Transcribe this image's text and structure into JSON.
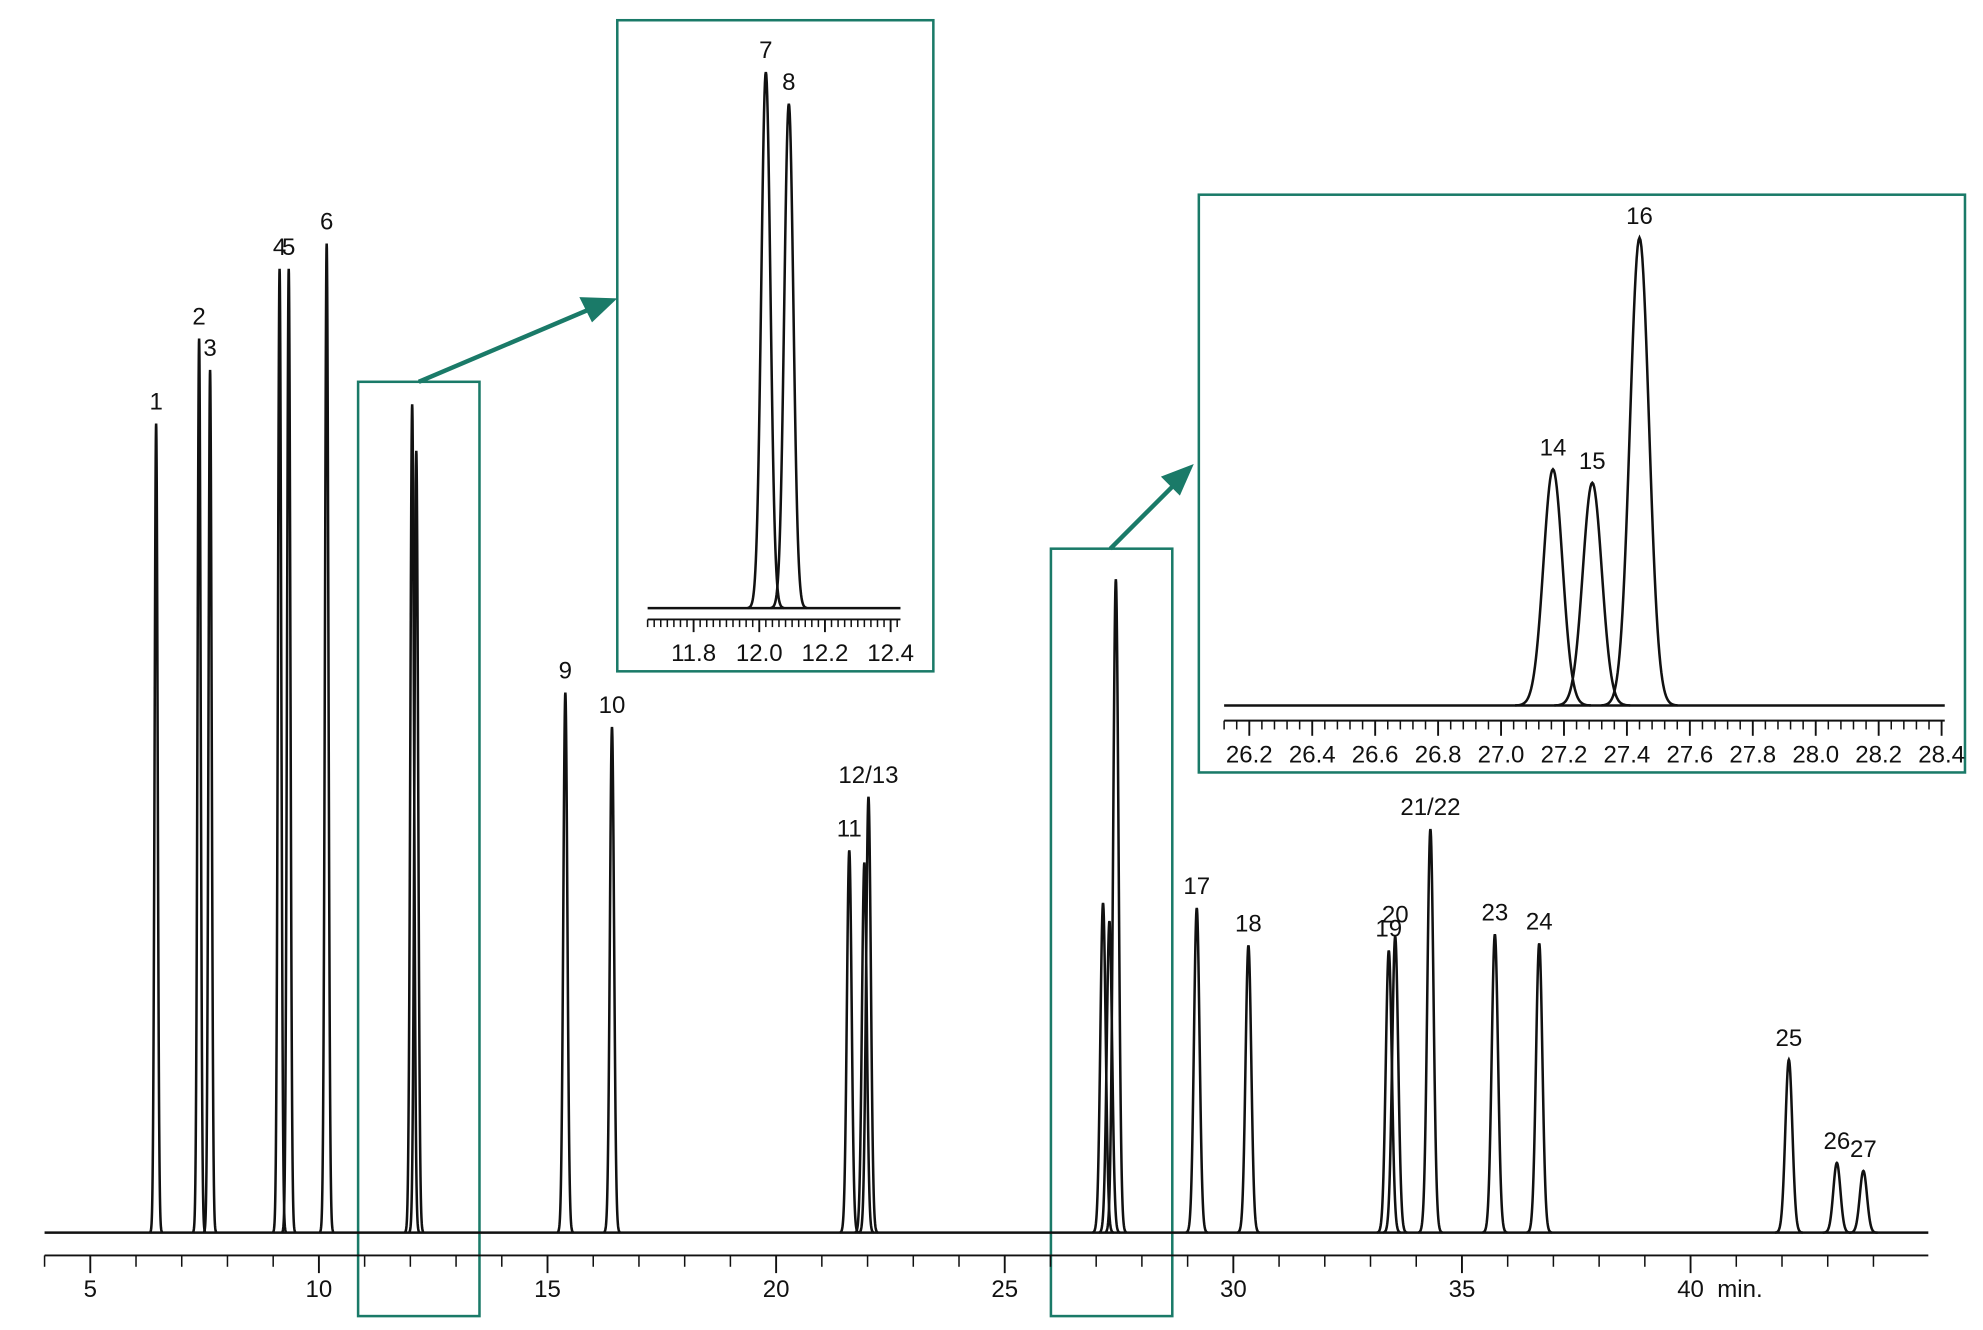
{
  "chart_data": [
    {
      "type": "chromatogram",
      "xlim": [
        4,
        45.2
      ],
      "ylim": [
        0,
        100
      ],
      "xticks": [
        5,
        10,
        15,
        20,
        25,
        30,
        35,
        40
      ],
      "x_unit_label": "min.",
      "peaks": {
        "labels": [
          "1",
          "2",
          "3",
          "4",
          "5",
          "6",
          null,
          null,
          "9",
          "10",
          "11",
          null,
          "12/13",
          null,
          null,
          null,
          "17",
          "18",
          "19",
          "20",
          "21/22",
          "23",
          "24",
          "25",
          "26",
          "27"
        ],
        "x": [
          6.44,
          7.38,
          7.62,
          9.14,
          9.34,
          10.17,
          12.04,
          12.13,
          15.39,
          16.41,
          21.6,
          21.93,
          22.02,
          27.15,
          27.29,
          27.43,
          29.2,
          30.33,
          33.4,
          33.54,
          34.31,
          35.72,
          36.69,
          42.15,
          43.2,
          43.78
        ],
        "values": [
          80,
          88.4,
          85.3,
          95.3,
          95.3,
          97.8,
          81.9,
          77.3,
          53.4,
          50,
          37.8,
          36.6,
          43.1,
          32.6,
          30.8,
          64.6,
          32.1,
          28.4,
          27.9,
          29.3,
          39.9,
          29.5,
          28.6,
          17.1,
          6.9,
          6.1
        ]
      }
    },
    {
      "type": "chromatogram",
      "xlim": [
        11.66,
        12.43
      ],
      "ylim": [
        0,
        100
      ],
      "xticks": [
        11.8,
        {
          "value": 12,
          "label": "12.0"
        },
        12.2,
        12.4
      ],
      "peaks": {
        "labels": [
          "7",
          "8"
        ],
        "x": [
          12.02,
          12.09
        ],
        "values": [
          100,
          94.1
        ]
      }
    },
    {
      "type": "chromatogram",
      "xlim": [
        26.12,
        28.41
      ],
      "ylim": [
        0,
        100
      ],
      "xticks": [
        26.2,
        26.4,
        26.6,
        26.8,
        {
          "value": 27,
          "label": "27.0"
        },
        27.2,
        27.4,
        27.6,
        27.8,
        {
          "value": 28,
          "label": "28.0"
        },
        28.2,
        28.4
      ],
      "peaks": {
        "labels": [
          "14",
          "15",
          "16"
        ],
        "x": [
          27.165,
          27.29,
          27.44
        ],
        "values": [
          50.5,
          47.6,
          100
        ]
      }
    }
  ]
}
